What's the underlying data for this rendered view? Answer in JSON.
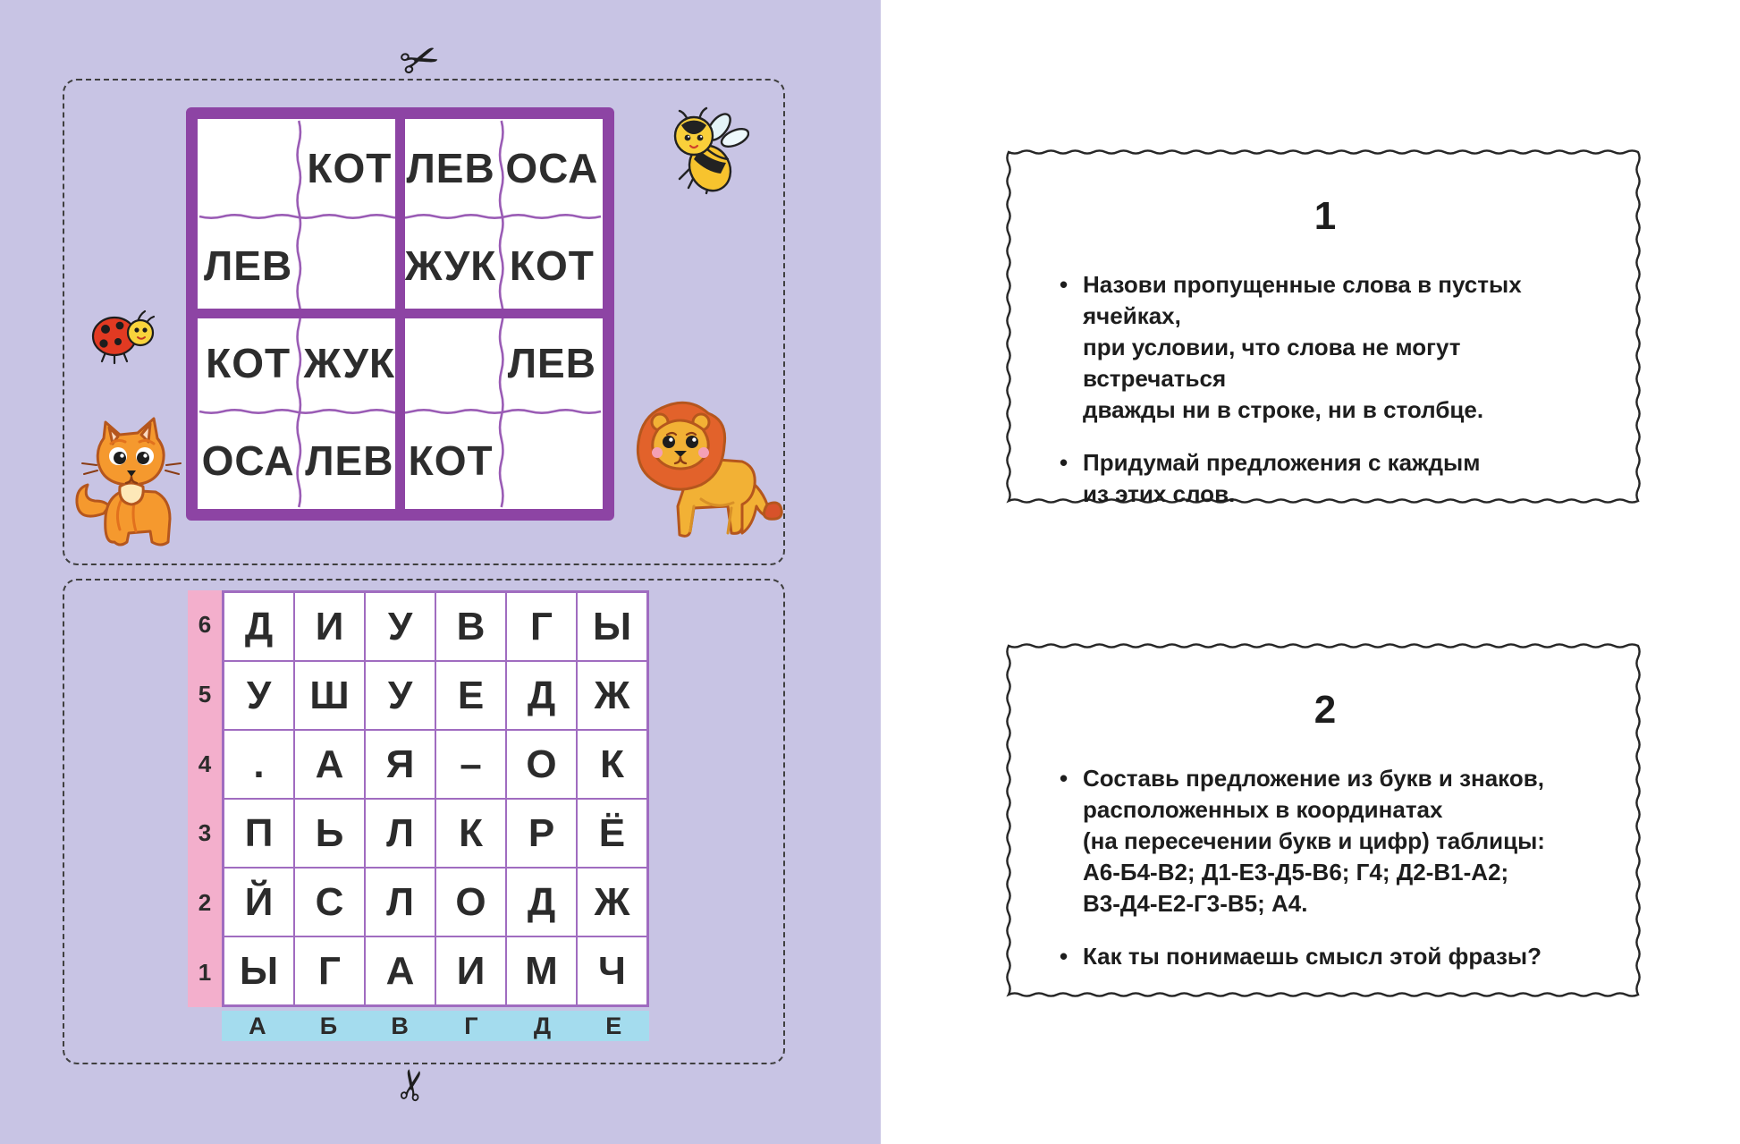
{
  "ui": {
    "bullet_char": "•",
    "scissors_glyph": "✂"
  },
  "colors": {
    "page_bg": "#c8c4e4",
    "grid_purple": "#8d44a4",
    "thin_purple": "#a06cc0",
    "wavy_purple": "#9a5cb5",
    "pink_stripe": "#f3afcc",
    "blue_stripe": "#a4dcee",
    "card_border": "#262626",
    "text": "#2b2b2b"
  },
  "decorations": [
    "scissors-icon",
    "bee-illustration",
    "ladybug-illustration",
    "cat-illustration",
    "lion-illustration"
  ],
  "sudoku": {
    "grid": [
      [
        "",
        "КОТ",
        "ЛЕВ",
        "ОСА"
      ],
      [
        "ЛЕВ",
        "",
        "ЖУК",
        "КОТ"
      ],
      [
        "КОТ",
        "ЖУК",
        "",
        "ЛЕВ"
      ],
      [
        "ОСА",
        "ЛЕВ",
        "КОТ",
        ""
      ]
    ]
  },
  "letter_grid": {
    "row_labels": [
      "6",
      "5",
      "4",
      "3",
      "2",
      "1"
    ],
    "col_labels": [
      "А",
      "Б",
      "В",
      "Г",
      "Д",
      "Е"
    ],
    "rows": [
      [
        "Д",
        "И",
        "У",
        "В",
        "Г",
        "Ы"
      ],
      [
        "У",
        "Ш",
        "У",
        "Е",
        "Д",
        "Ж"
      ],
      [
        ".",
        "А",
        "Я",
        "–",
        "О",
        "К"
      ],
      [
        "П",
        "Ь",
        "Л",
        "К",
        "Р",
        "Ё"
      ],
      [
        "Й",
        "С",
        "Л",
        "О",
        "Д",
        "Ж"
      ],
      [
        "Ы",
        "Г",
        "А",
        "И",
        "М",
        "Ч"
      ]
    ]
  },
  "cards": [
    {
      "number": "1",
      "bullets": [
        "Назови пропущенные слова в пустых ячейках,\nпри условии, что слова не могут встречаться\nдважды ни в строке, ни в столбце.",
        "Придумай предложения с каждым\nиз этих слов."
      ]
    },
    {
      "number": "2",
      "bullets": [
        "Составь предложение из букв и знаков,\nрасположенных в координатах\n(на пересечении букв и цифр) таблицы:\nА6-Б4-В2; Д1-Е3-Д5-В6; Г4; Д2-В1-А2;\nВ3-Д4-Е2-Г3-В5; А4.",
        "Как ты понимаешь смысл этой фразы?"
      ]
    }
  ]
}
